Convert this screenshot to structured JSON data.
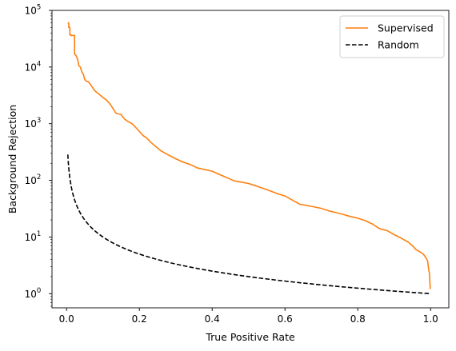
{
  "chart_data": {
    "type": "line",
    "xlabel": "True Positive Rate",
    "ylabel": "Background Rejection",
    "xlim": [
      -0.04,
      1.05
    ],
    "ylim_log10": [
      -0.25,
      5.0
    ],
    "yscale": "log",
    "grid": false,
    "legend_position": "top-right",
    "x_ticks": [
      {
        "value": 0.0,
        "label": "0.0"
      },
      {
        "value": 0.2,
        "label": "0.2"
      },
      {
        "value": 0.4,
        "label": "0.4"
      },
      {
        "value": 0.6,
        "label": "0.6"
      },
      {
        "value": 0.8,
        "label": "0.8"
      },
      {
        "value": 1.0,
        "label": "1.0"
      }
    ],
    "y_ticks": [
      {
        "exp": 0,
        "base": "10",
        "sup": "0"
      },
      {
        "exp": 1,
        "base": "10",
        "sup": "1"
      },
      {
        "exp": 2,
        "base": "10",
        "sup": "2"
      },
      {
        "exp": 3,
        "base": "10",
        "sup": "3"
      },
      {
        "exp": 4,
        "base": "10",
        "sup": "4"
      },
      {
        "exp": 5,
        "base": "10",
        "sup": "5"
      }
    ],
    "series": [
      {
        "name": "Supervised",
        "color": "#ff7f0e",
        "dash": "solid",
        "x": [
          0.003,
          0.006,
          0.006,
          0.009,
          0.009,
          0.012,
          0.012,
          0.022,
          0.022,
          0.026,
          0.03,
          0.034,
          0.038,
          0.042,
          0.046,
          0.05,
          0.055,
          0.06,
          0.065,
          0.07,
          0.075,
          0.08,
          0.09,
          0.1,
          0.11,
          0.12,
          0.13,
          0.135,
          0.14,
          0.15,
          0.155,
          0.16,
          0.17,
          0.18,
          0.19,
          0.2,
          0.21,
          0.22,
          0.23,
          0.24,
          0.26,
          0.28,
          0.3,
          0.32,
          0.34,
          0.36,
          0.38,
          0.4,
          0.42,
          0.44,
          0.46,
          0.48,
          0.5,
          0.52,
          0.54,
          0.56,
          0.58,
          0.6,
          0.62,
          0.64,
          0.66,
          0.68,
          0.7,
          0.72,
          0.74,
          0.76,
          0.78,
          0.8,
          0.82,
          0.84,
          0.86,
          0.88,
          0.9,
          0.92,
          0.94,
          0.95,
          0.96,
          0.97,
          0.98,
          0.985,
          0.99,
          0.992,
          0.995,
          0.997,
          0.999
        ],
        "y": [
          60000,
          60000,
          50000,
          50000,
          37000,
          37000,
          36000,
          36000,
          17000,
          16000,
          14000,
          10500,
          10000,
          8200,
          7500,
          6000,
          5600,
          5500,
          5000,
          4500,
          4000,
          3700,
          3300,
          2900,
          2600,
          2200,
          1750,
          1550,
          1500,
          1450,
          1300,
          1200,
          1080,
          1000,
          860,
          730,
          620,
          560,
          480,
          420,
          330,
          280,
          240,
          210,
          190,
          165,
          155,
          145,
          127,
          112,
          98,
          93,
          88,
          80,
          72,
          65,
          58,
          53,
          45,
          38,
          36,
          34,
          32,
          29,
          27,
          25,
          23,
          21.5,
          19.5,
          17,
          14,
          13,
          11,
          9.5,
          8,
          7,
          6,
          5.5,
          5,
          4.5,
          4,
          3.7,
          2.6,
          2.3,
          1.2
        ]
      },
      {
        "name": "Random",
        "color": "#000000",
        "dash": "dashed",
        "curve": "reciprocal",
        "x_range": [
          0.0035,
          1.0
        ]
      }
    ]
  }
}
